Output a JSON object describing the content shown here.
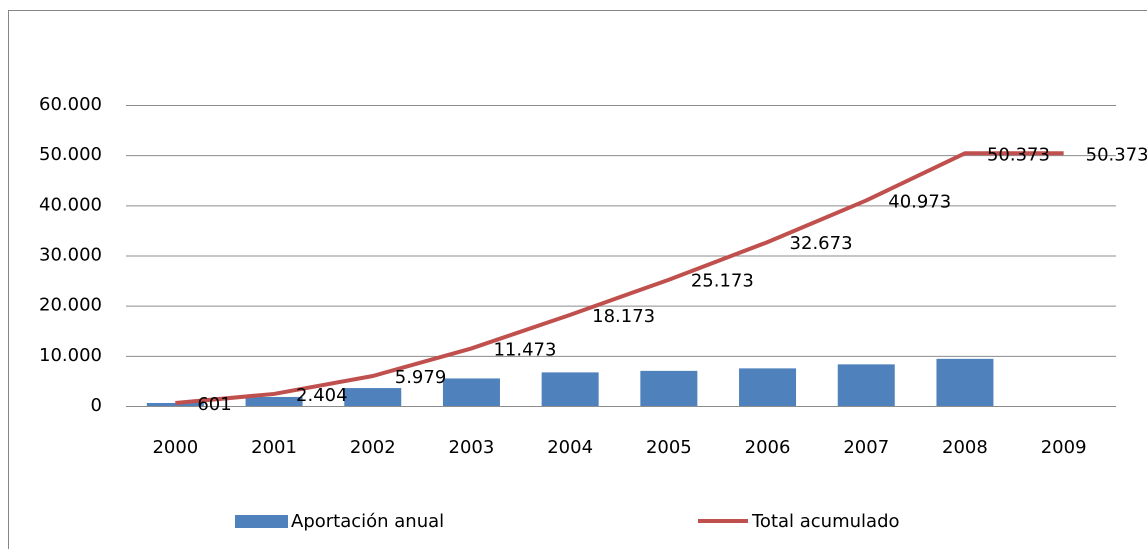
{
  "chart_data": {
    "type": "bar_line",
    "categories": [
      "2000",
      "2001",
      "2002",
      "2003",
      "2004",
      "2005",
      "2006",
      "2007",
      "2008",
      "2009"
    ],
    "series": [
      {
        "name": "Aportación anual",
        "type": "bar",
        "color": "#4f81bd",
        "values": [
          601,
          1803,
          3575,
          5494,
          6700,
          7000,
          7500,
          8300,
          9400,
          0
        ]
      },
      {
        "name": "Total acumulado",
        "type": "line",
        "color": "#c0504d",
        "values": [
          601,
          2404,
          5979,
          11473,
          18173,
          25173,
          32673,
          40973,
          50373,
          50373
        ],
        "value_labels": [
          "601",
          "2.404",
          "5.979",
          "11.473",
          "18.173",
          "25.173",
          "32.673",
          "40.973",
          "50.373",
          "50.373"
        ]
      }
    ],
    "ylim": [
      0,
      60000
    ],
    "yticks": [
      0,
      {
        "value": 10000,
        "label": "10.000"
      },
      {
        "value": 20000,
        "label": "20.000"
      },
      {
        "value": 30000,
        "label": "30.000"
      },
      {
        "value": 40000,
        "label": "40.000"
      },
      {
        "value": 50000,
        "label": "50.000"
      },
      {
        "value": 60000,
        "label": "60.000"
      }
    ],
    "grid": true,
    "legend": "bottom"
  }
}
